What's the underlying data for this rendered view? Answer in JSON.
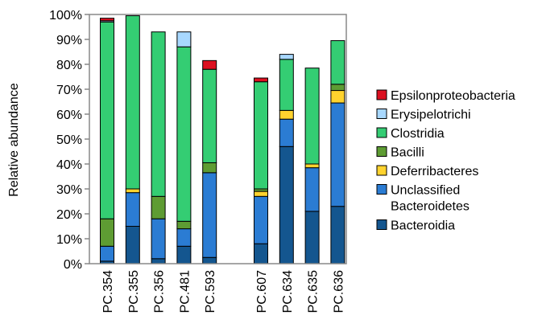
{
  "chart_data": {
    "type": "bar",
    "stacked": true,
    "title": "",
    "xlabel": "",
    "ylabel": "Relative abundance",
    "ylim": [
      0,
      100
    ],
    "yticks": [
      0,
      10,
      20,
      30,
      40,
      50,
      60,
      70,
      80,
      90,
      100
    ],
    "y_tick_suffix": "%",
    "grid": false,
    "legend_position": "right",
    "x_tick_rotation": "vertical",
    "categories": [
      "PC.354",
      "PC.355",
      "PC.356",
      "PC.481",
      "PC.593",
      "PC.607",
      "PC.634",
      "PC.635",
      "PC.636"
    ],
    "group_break_after": 4,
    "series": [
      {
        "name": "Bacteroidia",
        "color": "#14568f",
        "values": [
          1,
          15,
          2,
          7,
          2.5,
          8,
          47,
          21,
          23
        ]
      },
      {
        "name": "Unclassified Bacteroidetes",
        "color": "#2b7cd3",
        "values": [
          6,
          13.5,
          16,
          7,
          34,
          19,
          11,
          17.5,
          41.5
        ]
      },
      {
        "name": "Deferribacteres",
        "color": "#ffd32e",
        "values": [
          0,
          1.5,
          0,
          0,
          0,
          2,
          3.5,
          1.5,
          5
        ]
      },
      {
        "name": "Bacilli",
        "color": "#5e9c33",
        "values": [
          11,
          0,
          9,
          3,
          4,
          1,
          0,
          0,
          2.5
        ]
      },
      {
        "name": "Clostridia",
        "color": "#34cd73",
        "values": [
          79,
          69.5,
          66,
          70,
          37.5,
          43,
          20.5,
          38.5,
          17.5
        ]
      },
      {
        "name": "Erysipelotrichi",
        "color": "#a8d8ff",
        "values": [
          0.5,
          0,
          0,
          6,
          0,
          0,
          2,
          0,
          0
        ]
      },
      {
        "name": "Epsilonproteobacteria",
        "color": "#dc1020",
        "values": [
          1,
          0,
          0,
          0,
          3.5,
          1.5,
          0,
          0,
          0
        ]
      }
    ]
  }
}
